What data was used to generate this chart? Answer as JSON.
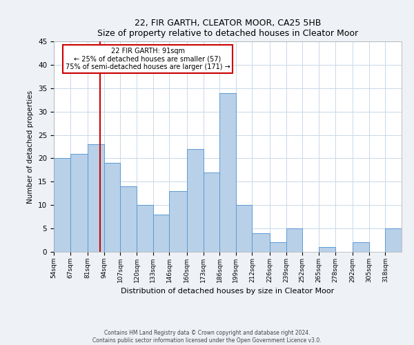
{
  "title": "22, FIR GARTH, CLEATOR MOOR, CA25 5HB",
  "subtitle": "Size of property relative to detached houses in Cleator Moor",
  "xlabel": "Distribution of detached houses by size in Cleator Moor",
  "ylabel": "Number of detached properties",
  "bin_labels": [
    "54sqm",
    "67sqm",
    "81sqm",
    "94sqm",
    "107sqm",
    "120sqm",
    "133sqm",
    "146sqm",
    "160sqm",
    "173sqm",
    "186sqm",
    "199sqm",
    "212sqm",
    "226sqm",
    "239sqm",
    "252sqm",
    "265sqm",
    "278sqm",
    "292sqm",
    "305sqm",
    "318sqm"
  ],
  "bin_edges": [
    54,
    67,
    81,
    94,
    107,
    120,
    133,
    146,
    160,
    173,
    186,
    199,
    212,
    226,
    239,
    252,
    265,
    278,
    292,
    305,
    318
  ],
  "bar_heights": [
    20,
    21,
    23,
    19,
    14,
    10,
    8,
    13,
    22,
    17,
    34,
    10,
    4,
    2,
    5,
    0,
    1,
    0,
    2,
    0,
    5
  ],
  "bar_color": "#b8d0e8",
  "bar_edge_color": "#5b9bd5",
  "ylim": [
    0,
    45
  ],
  "yticks": [
    0,
    5,
    10,
    15,
    20,
    25,
    30,
    35,
    40,
    45
  ],
  "vline_x": 91,
  "vline_color": "#cc0000",
  "annotation_title": "22 FIR GARTH: 91sqm",
  "annotation_line1": "← 25% of detached houses are smaller (57)",
  "annotation_line2": "75% of semi-detached houses are larger (171) →",
  "annotation_box_color": "#cc0000",
  "footer_line1": "Contains HM Land Registry data © Crown copyright and database right 2024.",
  "footer_line2": "Contains public sector information licensed under the Open Government Licence v3.0.",
  "bg_color": "#eef2f7",
  "plot_bg_color": "#ffffff",
  "grid_color": "#c8d8e8"
}
